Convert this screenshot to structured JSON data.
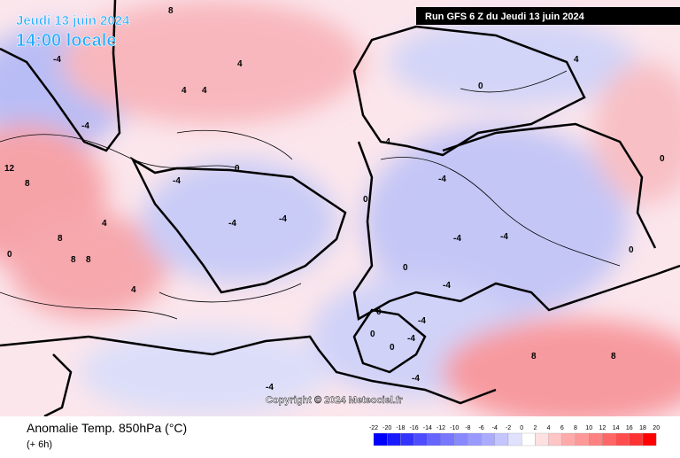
{
  "header": {
    "date": "Jeudi 13 juin 2024",
    "time": "14:00 locale",
    "run": "Run GFS 6 Z du Jeudi 13 juin 2024"
  },
  "footer": {
    "title": "Anomalie Temp. 850hPa (°C)",
    "lead": "(+ 6h)",
    "copyright": "Copyright © 2024 Meteociel.fr"
  },
  "colorbar": {
    "ticks": [
      -22,
      -20,
      -18,
      -16,
      -14,
      -12,
      -10,
      -8,
      -6,
      -4,
      -2,
      0,
      2,
      4,
      6,
      8,
      10,
      12,
      14,
      16,
      18,
      20
    ],
    "colors": [
      "#0000ff",
      "#1a1aff",
      "#3333ff",
      "#4d4dff",
      "#6666ff",
      "#7777ff",
      "#8888ff",
      "#9999ff",
      "#aaaaff",
      "#c4c4ff",
      "#e0e0ff",
      "#ffffff",
      "#ffe0e0",
      "#ffc4c4",
      "#ffaaaa",
      "#ff9999",
      "#ff8080",
      "#ff6666",
      "#ff4d4d",
      "#ff3333",
      "#ff0000"
    ]
  },
  "contour_labels": [
    "8",
    "-4",
    "4",
    "4",
    "4",
    "0",
    "-4",
    "-4",
    "0",
    "-4",
    "-4",
    "4",
    "12",
    "8",
    "8",
    "8",
    "8",
    "0",
    "0",
    "4",
    "-4",
    "-4",
    "-4",
    "-4",
    "-4",
    "-4",
    "-4",
    "0",
    "0",
    "0",
    "-4",
    "-4",
    "4",
    "8",
    "8",
    "0",
    "0",
    "0"
  ]
}
